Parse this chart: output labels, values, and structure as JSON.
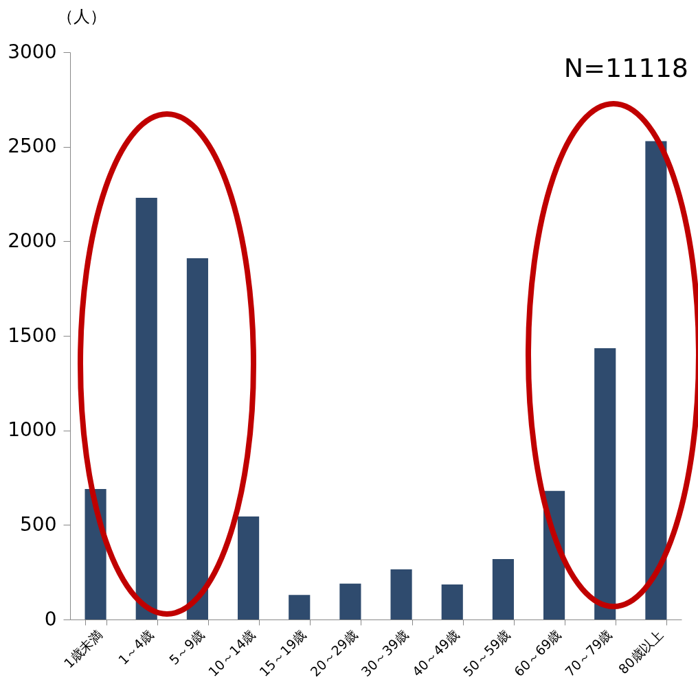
{
  "chart_data": {
    "type": "bar",
    "ylabel": "（人）",
    "annotations": [
      "N=11118"
    ],
    "categories": [
      "1歳未満",
      "1～4歳",
      "5～9歳",
      "10～14歳",
      "15～19歳",
      "20～29歳",
      "30～39歳",
      "40～49歳",
      "50～59歳",
      "60～69歳",
      "70～79歳",
      "80歳以上"
    ],
    "values": [
      690,
      2230,
      1910,
      545,
      130,
      190,
      265,
      185,
      320,
      680,
      1435,
      2530
    ],
    "color": "#2f4b6e",
    "ylim": [
      0,
      3000
    ],
    "yticks": [
      0,
      500,
      1000,
      1500,
      2000,
      2500,
      3000
    ],
    "grid": false
  }
}
